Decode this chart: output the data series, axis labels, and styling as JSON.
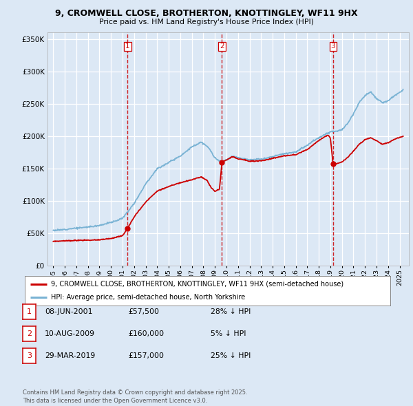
{
  "title": "9, CROMWELL CLOSE, BROTHERTON, KNOTTINGLEY, WF11 9HX",
  "subtitle": "Price paid vs. HM Land Registry's House Price Index (HPI)",
  "ylim": [
    0,
    360000
  ],
  "yticks": [
    0,
    50000,
    100000,
    150000,
    200000,
    250000,
    300000,
    350000
  ],
  "ytick_labels": [
    "£0",
    "£50K",
    "£100K",
    "£150K",
    "£200K",
    "£250K",
    "£300K",
    "£350K"
  ],
  "background_color": "#dce8f5",
  "plot_bg_color": "#dce8f5",
  "grid_color": "#ffffff",
  "sale_dates": [
    2001.44,
    2009.61,
    2019.24
  ],
  "sale_prices": [
    57500,
    160000,
    157000
  ],
  "sale_labels": [
    "1",
    "2",
    "3"
  ],
  "vline_color": "#cc0000",
  "sale_dot_color": "#cc0000",
  "hpi_line_color": "#7ab3d4",
  "price_line_color": "#cc0000",
  "legend_label_1": "9, CROMWELL CLOSE, BROTHERTON, KNOTTINGLEY, WF11 9HX (semi-detached house)",
  "legend_label_2": "HPI: Average price, semi-detached house, North Yorkshire",
  "table_entries": [
    {
      "num": "1",
      "date": "08-JUN-2001",
      "price": "£57,500",
      "hpi": "28% ↓ HPI"
    },
    {
      "num": "2",
      "date": "10-AUG-2009",
      "price": "£160,000",
      "hpi": "5% ↓ HPI"
    },
    {
      "num": "3",
      "date": "29-MAR-2019",
      "price": "£157,000",
      "hpi": "25% ↓ HPI"
    }
  ],
  "footnote": "Contains HM Land Registry data © Crown copyright and database right 2025.\nThis data is licensed under the Open Government Licence v3.0.",
  "xlim_start": 1994.5,
  "xlim_end": 2025.8,
  "xticks": [
    1995,
    1996,
    1997,
    1998,
    1999,
    2000,
    2001,
    2002,
    2003,
    2004,
    2005,
    2006,
    2007,
    2008,
    2009,
    2010,
    2011,
    2012,
    2013,
    2014,
    2015,
    2016,
    2017,
    2018,
    2019,
    2020,
    2021,
    2022,
    2023,
    2024,
    2025
  ]
}
